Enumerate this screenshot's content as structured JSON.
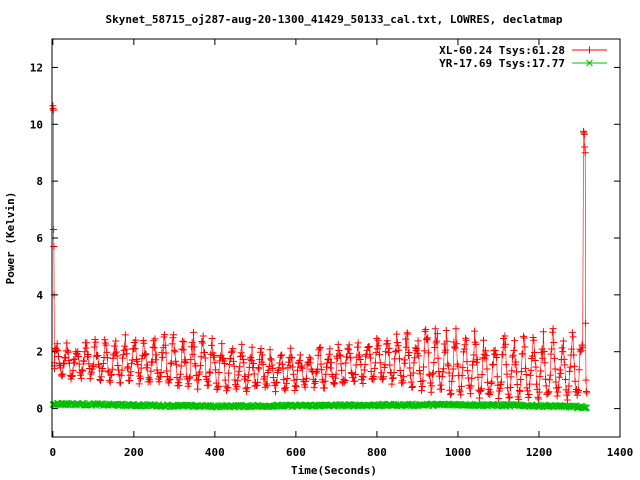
{
  "chart_data": {
    "type": "scatter",
    "title": "Skynet_58715_oj287-aug-20-1300_41429_50133_cal.txt, LOWRES, declatmap",
    "xlabel": "Time(Seconds)",
    "ylabel": "Power (Kelvin)",
    "xlim": [
      -2,
      1400
    ],
    "ylim": [
      -1,
      13
    ],
    "x_ticks": [
      0,
      200,
      400,
      600,
      800,
      1000,
      1200,
      1400
    ],
    "y_ticks": [
      0,
      2,
      4,
      6,
      8,
      10,
      12
    ],
    "legend_position": "top-right",
    "grid": false,
    "series": [
      {
        "name": "XL-60.24 Tsys:61.28",
        "color": "#ff0000",
        "marker": "plus",
        "description_points": [
          {
            "x": 0,
            "y": 10.6
          },
          {
            "x": 2,
            "y": 6.3
          },
          {
            "x": 4,
            "y": 1.5
          },
          {
            "x": 100,
            "y": 1.0
          },
          {
            "x": 250,
            "y": 1.1
          },
          {
            "x": 350,
            "y": 2.8
          },
          {
            "x": 500,
            "y": 0.9
          },
          {
            "x": 700,
            "y": 2.0
          },
          {
            "x": 900,
            "y": 3.0
          },
          {
            "x": 1000,
            "y": 0.8
          },
          {
            "x": 1100,
            "y": 0.4
          },
          {
            "x": 1200,
            "y": 2.8
          },
          {
            "x": 1310,
            "y": 9.7
          },
          {
            "x": 1318,
            "y": 0.6
          }
        ]
      },
      {
        "name": "YR-17.69 Tsys:17.77",
        "color": "#00c000",
        "marker": "cross",
        "description_points": [
          {
            "x": 0,
            "y": 0.17
          },
          {
            "x": 200,
            "y": 0.12
          },
          {
            "x": 400,
            "y": 0.08
          },
          {
            "x": 600,
            "y": 0.1
          },
          {
            "x": 800,
            "y": 0.12
          },
          {
            "x": 1000,
            "y": 0.14
          },
          {
            "x": 1200,
            "y": 0.1
          },
          {
            "x": 1318,
            "y": 0.05
          }
        ]
      }
    ]
  }
}
